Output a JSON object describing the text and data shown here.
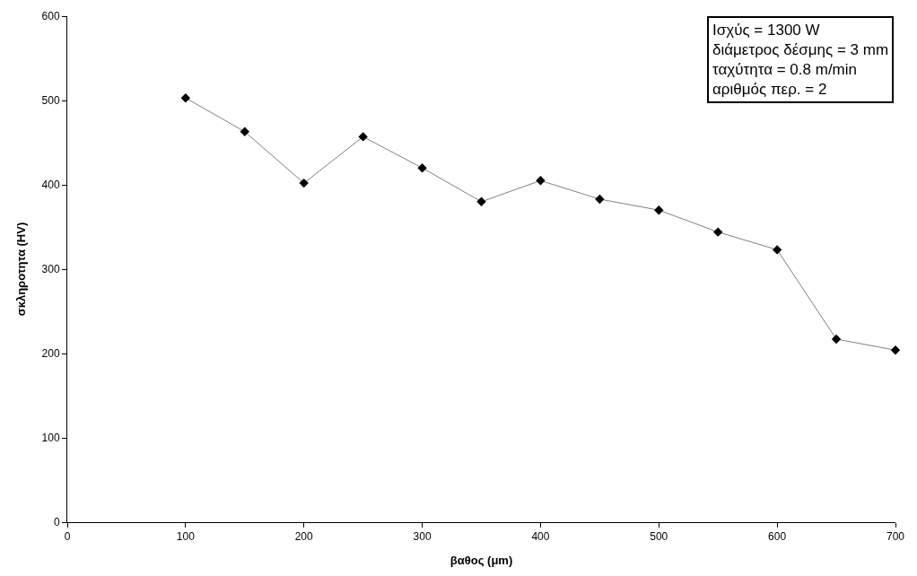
{
  "chart_data": {
    "type": "line",
    "xlabel": "βαθος (μm)",
    "ylabel": "σκληροτητα (HV)",
    "x": [
      100,
      150,
      200,
      250,
      300,
      350,
      400,
      450,
      500,
      550,
      600,
      650,
      700
    ],
    "series": [
      {
        "color": "#000000",
        "values": [
          503,
          463,
          402,
          457,
          420,
          380,
          405,
          383,
          370,
          344,
          323,
          217,
          204
        ]
      }
    ],
    "xlim": [
      0,
      700
    ],
    "xticks": [
      0,
      100,
      200,
      300,
      400,
      500,
      600,
      700
    ],
    "ylim": [
      0,
      600
    ],
    "yticks": [
      0,
      100,
      200,
      300,
      400,
      500,
      600
    ],
    "marker": "diamond",
    "line_style": "solid",
    "annotations": [
      "Ισχύς = 1300 W",
      "διάμετρος δέσμης = 3 mm",
      "ταχύτητα = 0.8 m/min",
      "αριθμός περ. = 2"
    ]
  }
}
